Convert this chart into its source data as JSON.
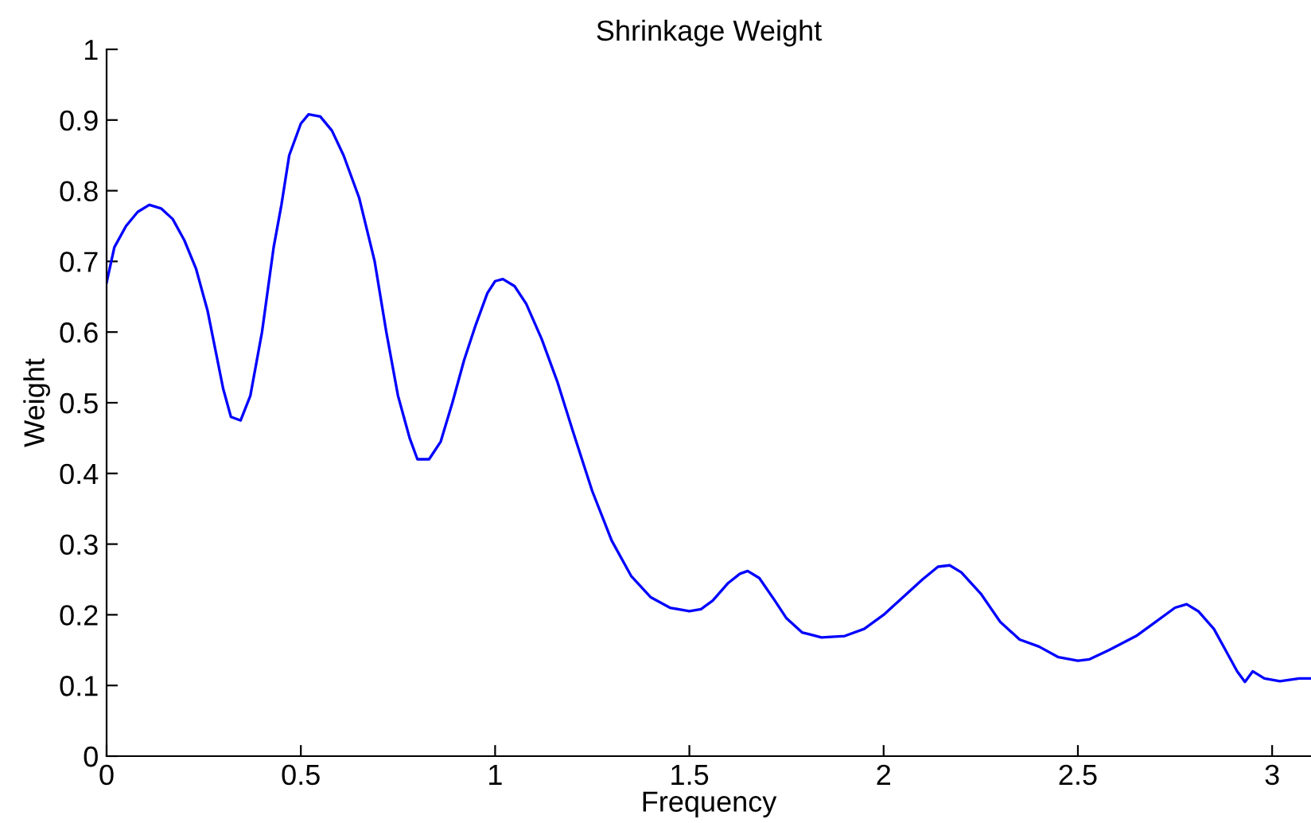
{
  "chart_data": {
    "type": "line",
    "title": "Shrinkage Weight",
    "xlabel": "Frequency",
    "ylabel": "Weight",
    "x": [
      0,
      0.02,
      0.05,
      0.08,
      0.11,
      0.14,
      0.17,
      0.2,
      0.23,
      0.26,
      0.3,
      0.32,
      0.345,
      0.37,
      0.4,
      0.43,
      0.45,
      0.47,
      0.5,
      0.52,
      0.55,
      0.58,
      0.61,
      0.65,
      0.69,
      0.72,
      0.75,
      0.78,
      0.8,
      0.83,
      0.86,
      0.89,
      0.92,
      0.95,
      0.98,
      1.0,
      1.02,
      1.05,
      1.08,
      1.12,
      1.16,
      1.2,
      1.25,
      1.3,
      1.35,
      1.4,
      1.45,
      1.5,
      1.53,
      1.56,
      1.6,
      1.63,
      1.65,
      1.68,
      1.72,
      1.75,
      1.79,
      1.84,
      1.9,
      1.95,
      2.0,
      2.05,
      2.1,
      2.14,
      2.17,
      2.2,
      2.25,
      2.3,
      2.35,
      2.4,
      2.45,
      2.5,
      2.53,
      2.58,
      2.65,
      2.7,
      2.75,
      2.78,
      2.81,
      2.85,
      2.88,
      2.91,
      2.93,
      2.95,
      2.98,
      3.02,
      3.07,
      3.1
    ],
    "series": [
      {
        "color": "#0000ff",
        "values": [
          0.67,
          0.72,
          0.75,
          0.77,
          0.78,
          0.775,
          0.76,
          0.73,
          0.69,
          0.63,
          0.52,
          0.48,
          0.475,
          0.51,
          0.6,
          0.72,
          0.78,
          0.85,
          0.895,
          0.908,
          0.905,
          0.885,
          0.85,
          0.79,
          0.7,
          0.6,
          0.51,
          0.45,
          0.42,
          0.42,
          0.445,
          0.5,
          0.56,
          0.61,
          0.655,
          0.672,
          0.675,
          0.665,
          0.64,
          0.59,
          0.53,
          0.46,
          0.375,
          0.305,
          0.255,
          0.225,
          0.21,
          0.205,
          0.208,
          0.22,
          0.245,
          0.258,
          0.262,
          0.252,
          0.22,
          0.195,
          0.175,
          0.168,
          0.17,
          0.18,
          0.2,
          0.225,
          0.25,
          0.268,
          0.27,
          0.26,
          0.23,
          0.19,
          0.165,
          0.155,
          0.14,
          0.135,
          0.137,
          0.15,
          0.17,
          0.19,
          0.21,
          0.215,
          0.205,
          0.18,
          0.15,
          0.12,
          0.105,
          0.12,
          0.11,
          0.106,
          0.11,
          0.11
        ]
      }
    ],
    "xlim": [
      0,
      3.1
    ],
    "ylim": [
      0,
      1
    ],
    "xticks": [
      0,
      0.5,
      1,
      1.5,
      2,
      2.5,
      3
    ],
    "yticks": [
      0,
      0.1,
      0.2,
      0.3,
      0.4,
      0.5,
      0.6,
      0.7,
      0.8,
      0.9,
      1
    ],
    "grid": false,
    "legend": false
  }
}
